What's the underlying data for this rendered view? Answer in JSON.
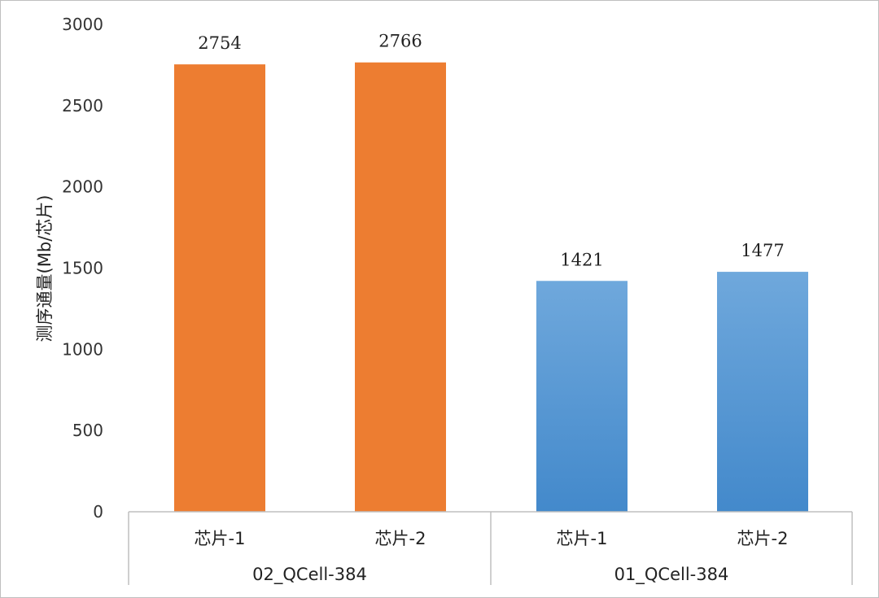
{
  "chart_data": {
    "type": "bar",
    "ylabel": "测序通量(Mb/芯片)",
    "ylim": [
      0,
      3000
    ],
    "yticks": [
      0,
      500,
      1000,
      1500,
      2000,
      2500,
      3000
    ],
    "grid": false,
    "legend": "none",
    "groups": [
      {
        "name": "02_QCell-384",
        "color": "#ED7D31",
        "bars": [
          {
            "category": "芯片-1",
            "value": 2754
          },
          {
            "category": "芯片-2",
            "value": 2766
          }
        ]
      },
      {
        "name": "01_QCell-384",
        "color": "#5B9BD5",
        "bars": [
          {
            "category": "芯片-1",
            "value": 1421
          },
          {
            "category": "芯片-2",
            "value": 1477
          }
        ]
      }
    ]
  }
}
